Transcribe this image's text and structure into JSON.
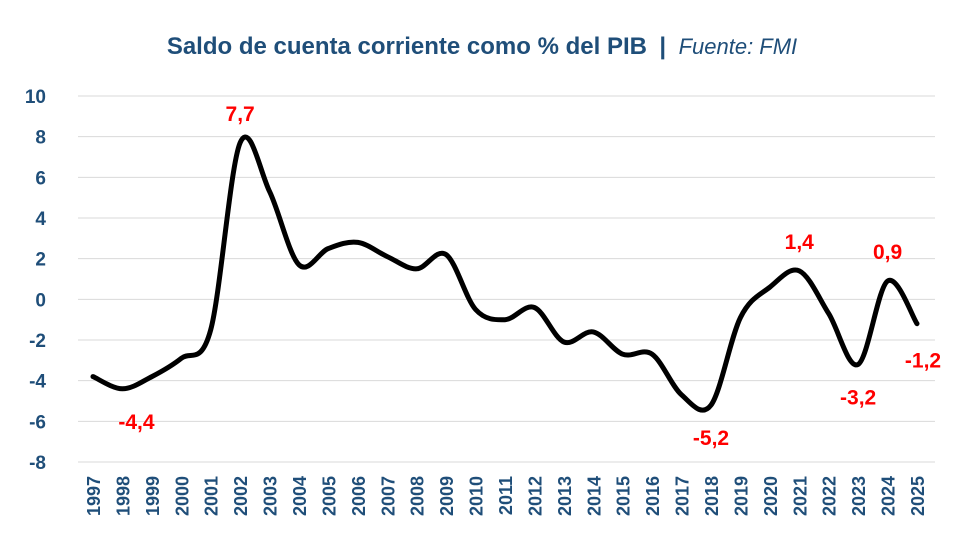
{
  "chart_data": {
    "type": "line",
    "title": "Saldo de cuenta corriente como % del PIB",
    "title_separator": "|",
    "subtitle": "Fuente: FMI",
    "xlabel": "",
    "ylabel": "",
    "ylim": [
      -8,
      10
    ],
    "y_ticks": [
      "10",
      "8",
      "6",
      "4",
      "2",
      "0",
      "-2",
      "-4",
      "-6",
      "-8"
    ],
    "grid": true,
    "legend": "none",
    "x": [
      "1997",
      "1998",
      "1999",
      "2000",
      "2001",
      "2002",
      "2003",
      "2004",
      "2005",
      "2006",
      "2007",
      "2008",
      "2009",
      "2010",
      "2011",
      "2012",
      "2013",
      "2014",
      "2015",
      "2016",
      "2017",
      "2018",
      "2019",
      "2020",
      "2021",
      "2022",
      "2023",
      "2024",
      "2025"
    ],
    "series": [
      {
        "values": [
          -3.8,
          -4.4,
          -3.8,
          -2.9,
          -1.5,
          7.7,
          5.3,
          1.7,
          2.5,
          2.8,
          2.1,
          1.5,
          2.2,
          -0.5,
          -1.0,
          -0.4,
          -2.1,
          -1.6,
          -2.7,
          -2.7,
          -4.7,
          -5.2,
          -0.9,
          0.6,
          1.4,
          -0.7,
          -3.2,
          0.9,
          -1.2
        ]
      }
    ],
    "data_labels": [
      {
        "index": 1,
        "text": "-4,4"
      },
      {
        "index": 5,
        "text": "7,7"
      },
      {
        "index": 21,
        "text": "-5,2"
      },
      {
        "index": 24,
        "text": "1,4"
      },
      {
        "index": 26,
        "text": "-3,2"
      },
      {
        "index": 27,
        "text": "0,9"
      },
      {
        "index": 28,
        "text": "-1,2"
      }
    ],
    "colors": {
      "line": "#000000",
      "title": "#1f4e79",
      "ticks": "#1f4e79",
      "labels": "#ff0000",
      "grid": "#d9d9d9"
    }
  }
}
